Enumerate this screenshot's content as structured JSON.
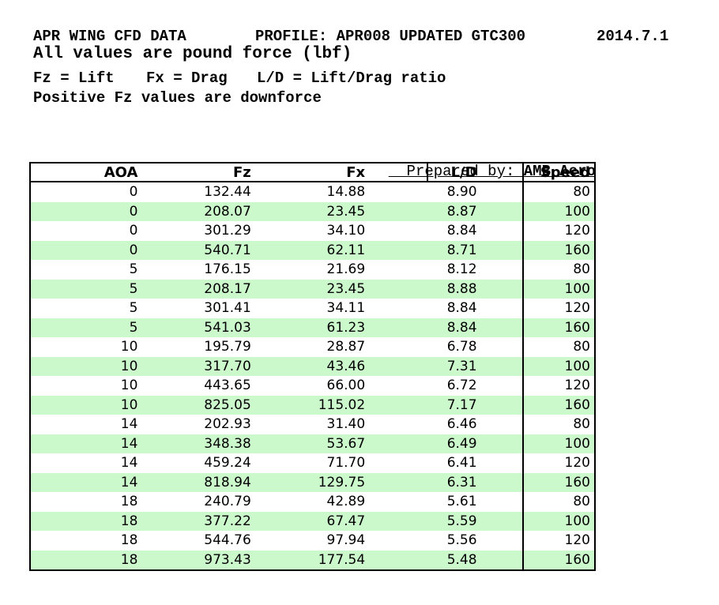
{
  "header": {
    "title": "APR WING CFD DATA",
    "profile": "PROFILE: APR008 UPDATED GTC300",
    "date": "2014.7.1",
    "units_note": "All values are pound force (lbf)",
    "legend": {
      "fz": "Fz = Lift",
      "fx": "Fx = Drag",
      "ld": "L/D = Lift/Drag ratio"
    },
    "downforce_note": "Positive Fz values are downforce",
    "prepared_by_label": "Prepared by: ",
    "prepared_by_value": "AMB Aero"
  },
  "table": {
    "columns": [
      "AOA",
      "Fz",
      "Fx",
      "L/D",
      "Speed"
    ],
    "rows": [
      [
        "0",
        "132.44",
        "14.88",
        "8.90",
        "80"
      ],
      [
        "0",
        "208.07",
        "23.45",
        "8.87",
        "100"
      ],
      [
        "0",
        "301.29",
        "34.10",
        "8.84",
        "120"
      ],
      [
        "0",
        "540.71",
        "62.11",
        "8.71",
        "160"
      ],
      [
        "5",
        "176.15",
        "21.69",
        "8.12",
        "80"
      ],
      [
        "5",
        "208.17",
        "23.45",
        "8.88",
        "100"
      ],
      [
        "5",
        "301.41",
        "34.11",
        "8.84",
        "120"
      ],
      [
        "5",
        "541.03",
        "61.23",
        "8.84",
        "160"
      ],
      [
        "10",
        "195.79",
        "28.87",
        "6.78",
        "80"
      ],
      [
        "10",
        "317.70",
        "43.46",
        "7.31",
        "100"
      ],
      [
        "10",
        "443.65",
        "66.00",
        "6.72",
        "120"
      ],
      [
        "10",
        "825.05",
        "115.02",
        "7.17",
        "160"
      ],
      [
        "14",
        "202.93",
        "31.40",
        "6.46",
        "80"
      ],
      [
        "14",
        "348.38",
        "53.67",
        "6.49",
        "100"
      ],
      [
        "14",
        "459.24",
        "71.70",
        "6.41",
        "120"
      ],
      [
        "14",
        "818.94",
        "129.75",
        "6.31",
        "160"
      ],
      [
        "18",
        "240.79",
        "42.89",
        "5.61",
        "80"
      ],
      [
        "18",
        "377.22",
        "67.47",
        "5.59",
        "100"
      ],
      [
        "18",
        "544.76",
        "97.94",
        "5.56",
        "120"
      ],
      [
        "18",
        "973.43",
        "177.54",
        "5.48",
        "160"
      ]
    ]
  },
  "colors": {
    "row_stripe_green": "#CCF9CC",
    "border_black": "#000000",
    "background": "#FFFFFF"
  }
}
